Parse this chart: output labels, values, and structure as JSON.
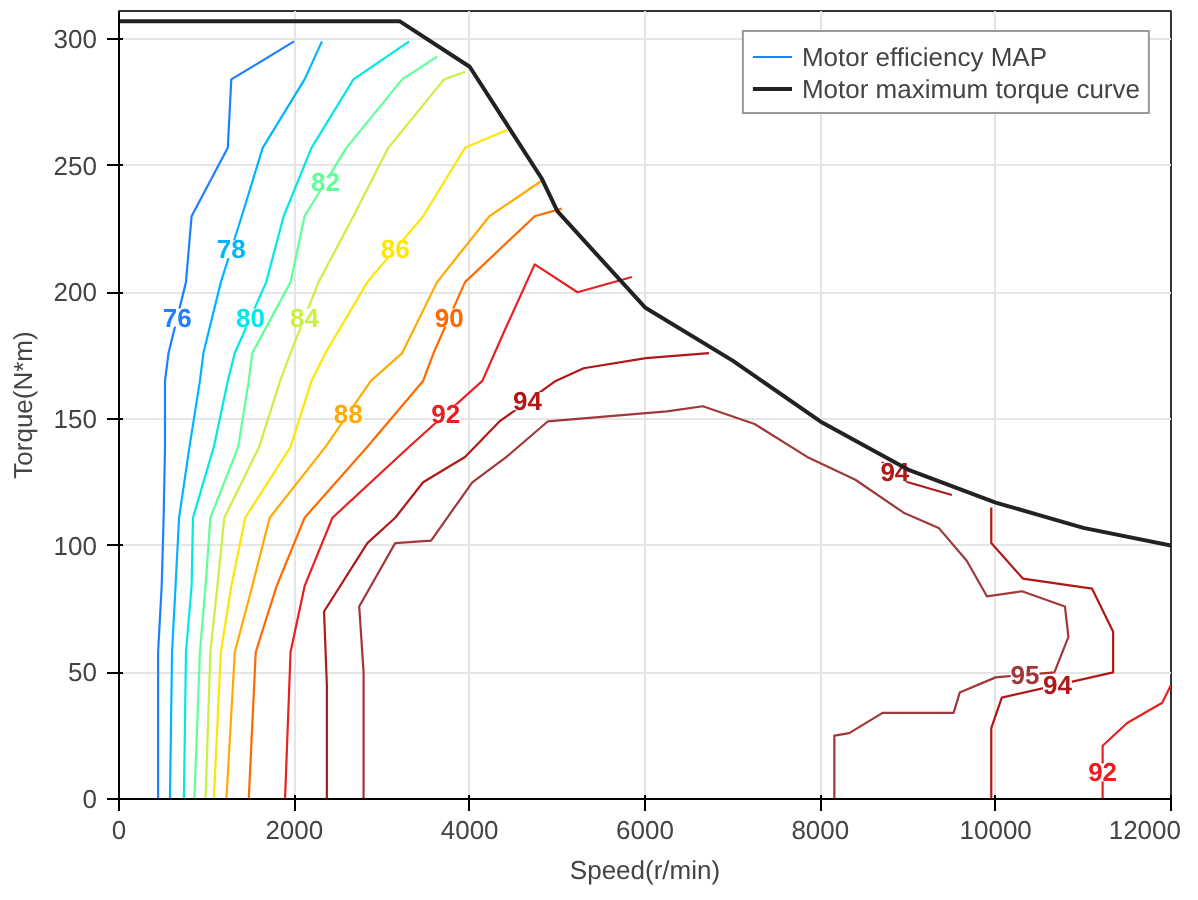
{
  "chart_data": {
    "type": "line",
    "xlabel": "Speed(r/min)",
    "ylabel": "Torque(N*m)",
    "xlim": [
      0,
      12000
    ],
    "ylim": [
      0,
      311
    ],
    "xticks": [
      0,
      2000,
      4000,
      6000,
      8000,
      10000,
      12000
    ],
    "yticks": [
      0,
      50,
      100,
      150,
      200,
      250,
      300
    ],
    "grid": true,
    "legend": "top right",
    "annotations": [
      "Motor efficiency MAP"
    ],
    "series": [
      {
        "name": "76",
        "color": "#1e7fff",
        "x": [
          446,
          446,
          487,
          509,
          525,
          525,
          565,
          764,
          828,
          1241,
          1281,
          1997
        ],
        "values": [
          0,
          58,
          84,
          111,
          139,
          165,
          176,
          204,
          230,
          257,
          284,
          299
        ]
      },
      {
        "name": "78",
        "color": "#00b4ff",
        "x": [
          581,
          605,
          645,
          685,
          804,
          923,
          963,
          1162,
          1400,
          1639,
          2117,
          2315
        ],
        "values": [
          0,
          58,
          84,
          111,
          139,
          165,
          176,
          204,
          230,
          257,
          284,
          299
        ]
      },
      {
        "name": "80",
        "color": "#00e8e8",
        "x": [
          740,
          764,
          828,
          844,
          1082,
          1241,
          1321,
          1679,
          1878,
          2196,
          2674,
          3310
        ],
        "values": [
          0,
          58,
          84,
          111,
          139,
          165,
          176,
          204,
          230,
          257,
          284,
          299
        ]
      },
      {
        "name": "82",
        "color": "#60ff9a",
        "x": [
          860,
          923,
          987,
          1042,
          1360,
          1480,
          1520,
          1957,
          2117,
          2594,
          3230,
          3628
        ],
        "values": [
          0,
          58,
          84,
          111,
          139,
          165,
          176,
          204,
          230,
          257,
          284,
          293
        ]
      },
      {
        "name": "84",
        "color": "#c8f040",
        "x": [
          987,
          1042,
          1122,
          1201,
          1599,
          1838,
          1957,
          2276,
          2674,
          3071,
          3708,
          3947
        ],
        "values": [
          0,
          58,
          84,
          111,
          139,
          165,
          176,
          204,
          230,
          257,
          284,
          287
        ]
      },
      {
        "name": "86",
        "color": "#ffe600",
        "x": [
          1082,
          1162,
          1281,
          1440,
          1957,
          2196,
          2355,
          2833,
          3469,
          3947,
          4424
        ],
        "values": [
          0,
          58,
          84,
          111,
          139,
          165,
          176,
          204,
          230,
          257,
          264
        ]
      },
      {
        "name": "88",
        "color": "#ffaa00",
        "x": [
          1225,
          1321,
          1520,
          1719,
          2355,
          2873,
          3230,
          3628,
          4225,
          4822
        ],
        "values": [
          0,
          58,
          84,
          111,
          139,
          165,
          176,
          204,
          230,
          244
        ]
      },
      {
        "name": "90",
        "color": "#ff6a00",
        "x": [
          1480,
          1560,
          1798,
          2117,
          2833,
          3469,
          3588,
          3947,
          4742,
          5050
        ],
        "values": [
          0,
          58,
          84,
          111,
          139,
          165,
          176,
          204,
          230,
          233
        ]
      },
      {
        "name": "92",
        "color": "#e82020",
        "x": [
          1894,
          1957,
          2117,
          2435,
          3310,
          4145,
          4400,
          4742,
          5230,
          5850
        ],
        "values": [
          0,
          58,
          84,
          111,
          139,
          165,
          185,
          211,
          200,
          206
        ]
      },
      {
        "name": "92",
        "color": "#e82020",
        "x": [
          11220,
          11220,
          11500,
          11900,
          12000
        ],
        "values": [
          0,
          21,
          30,
          38,
          45
        ]
      },
      {
        "name": "94",
        "color": "#b01818",
        "x": [
          2371,
          2371,
          2339,
          2833,
          3151,
          3469,
          3947,
          4340,
          4981,
          5300,
          6010,
          6730
        ],
        "values": [
          0,
          45,
          74,
          101,
          111,
          125,
          135,
          149,
          165,
          170,
          174,
          176
        ]
      },
      {
        "name": "94",
        "color": "#b01818",
        "x": [
          8700,
          9000,
          9500
        ],
        "values": [
          133,
          125,
          120
        ]
      },
      {
        "name": "94",
        "color": "#b01818",
        "x": [
          9950,
          9950,
          10310,
          11100,
          11340,
          11340,
          10070,
          9950,
          9950
        ],
        "values": [
          115,
          101,
          87,
          83,
          66,
          50,
          40,
          28,
          0
        ]
      },
      {
        "name": "95",
        "color": "#a03838",
        "x": [
          2790,
          2790,
          2740,
          3150,
          3560,
          4030,
          4420,
          4890,
          6250,
          6660,
          7250,
          7850,
          8400,
          8950,
          9350,
          9670,
          9900,
          10300,
          10790,
          10830,
          10670,
          10000,
          9590,
          9520,
          8710,
          8330,
          8160,
          8160
        ],
        "values": [
          0,
          50,
          76,
          101,
          102,
          125,
          135,
          149,
          153,
          155,
          148,
          135,
          126,
          113,
          107,
          94,
          80,
          82,
          76,
          64,
          50,
          48,
          42,
          34,
          34,
          26,
          25,
          0
        ]
      },
      {
        "name": "Motor maximum torque curve",
        "color": "#222222",
        "x": [
          0,
          3200,
          4000,
          4820,
          5000,
          6000,
          7000,
          8000,
          9000,
          10000,
          11000,
          12000
        ],
        "values": [
          307,
          307,
          289,
          245,
          232,
          194,
          173,
          149,
          130,
          117,
          107,
          100
        ]
      }
    ]
  }
}
